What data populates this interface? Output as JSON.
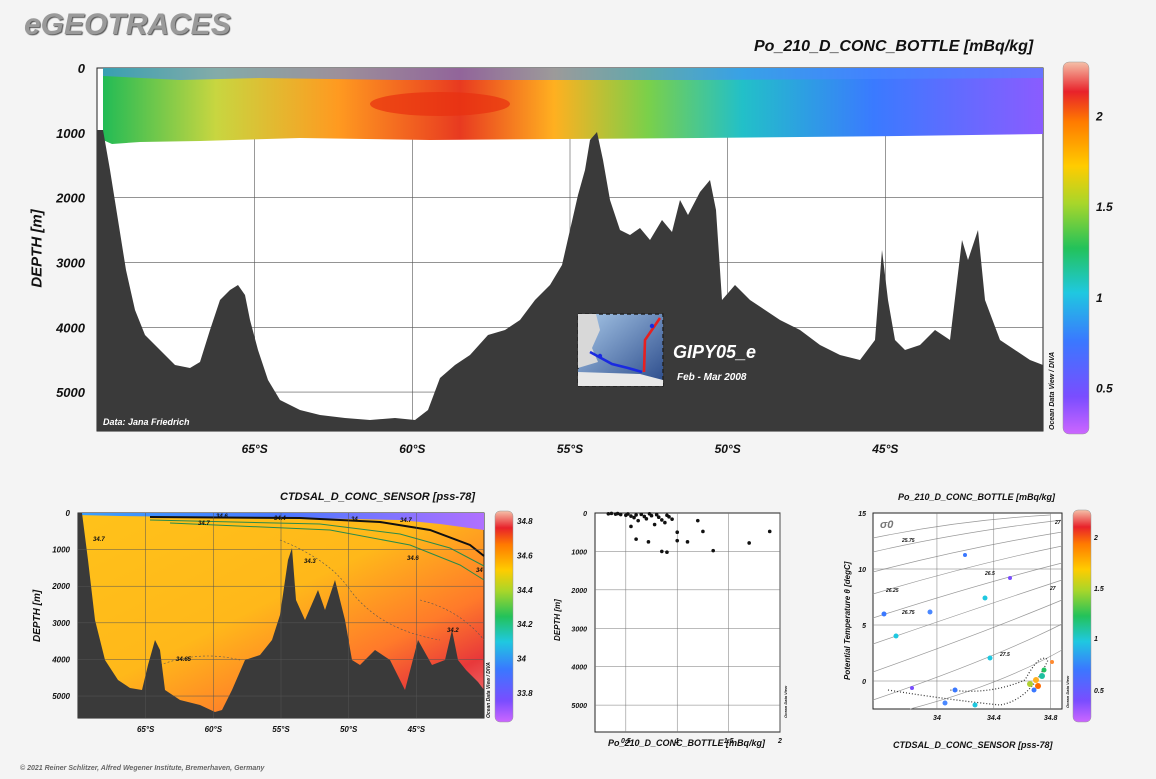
{
  "header": {
    "brand": "eGEOTRACES",
    "footer": "© 2021 Reiner Schlitzer, Alfred Wegener Institute, Bremerhaven, Germany"
  },
  "colors": {
    "land": "#3a3a3a",
    "background": "#f4f4f4",
    "brand": "#9a9a9a"
  },
  "chart_data": [
    {
      "id": "main-section",
      "type": "heatmap",
      "title": "Po_210_D_CONC_BOTTLE [mBq/kg]",
      "ylabel": "DEPTH [m]",
      "xlabel": "",
      "y_ticks": [
        "0",
        "1000",
        "2000",
        "3000",
        "4000",
        "5000"
      ],
      "ylim": [
        0,
        5600
      ],
      "x_ticks": [
        "65°S",
        "60°S",
        "55°S",
        "50°S",
        "45°S"
      ],
      "x_tick_values": [
        -65,
        -60,
        -55,
        -50,
        -45
      ],
      "xlim": [
        -70,
        -40
      ],
      "colorbar": {
        "ticks": [
          "0.5",
          "1",
          "1.5",
          "2"
        ],
        "tick_values": [
          0.5,
          1,
          1.5,
          2
        ],
        "range": [
          0.25,
          2.3
        ]
      },
      "credit": "Data: Jana Friedrich",
      "side_label": "Ocean Data View / DIVA",
      "inset": {
        "cruise": "GIPY05_e",
        "dates": "Feb - Mar 2008"
      },
      "grid": true
    },
    {
      "id": "salinity-section",
      "type": "heatmap",
      "title": "CTDSAL_D_CONC_SENSOR [pss-78]",
      "ylabel": "DEPTH [m]",
      "y_ticks": [
        "0",
        "1000",
        "2000",
        "3000",
        "4000",
        "5000"
      ],
      "x_ticks": [
        "65°S",
        "60°S",
        "55°S",
        "50°S",
        "45°S"
      ],
      "colorbar": {
        "ticks": [
          "34.8",
          "34.6",
          "34.4",
          "34.2",
          "34",
          "33.8"
        ]
      },
      "contour_labels": [
        "34.7",
        "34.7",
        "34.6",
        "34.3",
        "34.7",
        "34.6",
        "34.65",
        "34.2",
        "34",
        "34.4",
        "34"
      ],
      "side_label": "Ocean Data View / DIVA",
      "grid": true
    },
    {
      "id": "scatter-profile",
      "type": "scatter",
      "xlabel": "Po_210_D_CONC_BOTTLE [mBq/kg]",
      "ylabel": "DEPTH [m]",
      "x_ticks": [
        "0.5",
        "1",
        "1.5",
        "2"
      ],
      "y_ticks": [
        "0",
        "1000",
        "2000",
        "3000",
        "4000",
        "5000"
      ],
      "xlim": [
        0.2,
        2
      ],
      "ylim": [
        0,
        5700
      ],
      "side_label": "Ocean Data View",
      "x": [
        0.33,
        0.36,
        0.4,
        0.42,
        0.45,
        0.5,
        0.52,
        0.55,
        0.58,
        0.6,
        0.62,
        0.65,
        0.68,
        0.7,
        0.73,
        0.75,
        0.78,
        0.8,
        0.82,
        0.85,
        0.88,
        0.9,
        0.92,
        0.95,
        1.0,
        1.1,
        1.2,
        1.25,
        1.35,
        1.7,
        1.9,
        0.55,
        0.6,
        0.72,
        0.85,
        0.9,
        1.0
      ],
      "y": [
        20,
        10,
        30,
        15,
        40,
        60,
        25,
        80,
        120,
        50,
        200,
        35,
        90,
        150,
        20,
        70,
        300,
        45,
        110,
        180,
        250,
        60,
        100,
        160,
        500,
        750,
        200,
        480,
        980,
        780,
        480,
        350,
        680,
        750,
        1000,
        1020,
        720
      ]
    },
    {
      "id": "ts-diagram",
      "type": "scatter",
      "title": "Po_210_D_CONC_BOTTLE [mBq/kg]",
      "xlabel": "CTDSAL_D_CONC_SENSOR [pss-78]",
      "ylabel": "Potential Temperature θ [degC]",
      "x_ticks": [
        "34",
        "34.4",
        "34.8"
      ],
      "y_ticks": [
        "15",
        "10",
        "5",
        "0"
      ],
      "xlim": [
        33.55,
        34.88
      ],
      "ylim": [
        -2.5,
        15
      ],
      "sigma_label": "σ0",
      "isopycnal_labels": [
        "25.75",
        "26.25",
        "26.75",
        "26.5",
        "27",
        "27.5",
        "27"
      ],
      "colorbar": {
        "ticks": [
          "2",
          "1.5",
          "1",
          "0.5"
        ]
      },
      "side_label": "Ocean Data View"
    }
  ]
}
